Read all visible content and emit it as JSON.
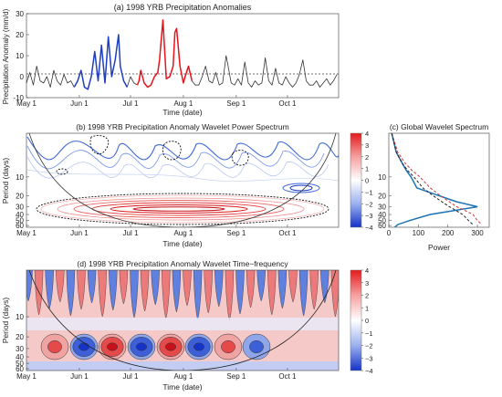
{
  "chart_data": [
    {
      "id": "a",
      "type": "line",
      "title": "(a) 1998 YRB Precipitation Anomalies",
      "xlabel": "Time (date)",
      "ylabel": "Precipitation Anomaly (mm/d)",
      "x_ticks": [
        "May 1",
        "Jun 1",
        "Jul 1",
        "Aug 1",
        "Sep 1",
        "Oct 1"
      ],
      "x_tick_days": [
        1,
        32,
        62,
        93,
        124,
        154
      ],
      "xlim": [
        1,
        184
      ],
      "ylim": [
        -10,
        30
      ],
      "y_ticks": [
        -10,
        0,
        10,
        20,
        30
      ],
      "zero_line": "dotted",
      "segments": [
        {
          "color": "#333333",
          "points": [
            [
              1,
              -3
            ],
            [
              3,
              2
            ],
            [
              5,
              -4
            ],
            [
              7,
              5
            ],
            [
              9,
              -2
            ],
            [
              11,
              -3
            ],
            [
              13,
              0
            ],
            [
              15,
              -5
            ],
            [
              17,
              3
            ],
            [
              19,
              -2
            ],
            [
              21,
              -4
            ],
            [
              23,
              1
            ],
            [
              25,
              -3
            ],
            [
              27,
              -2
            ],
            [
              29,
              -5
            ]
          ]
        },
        {
          "color": "#1f3fbf",
          "points": [
            [
              29,
              -5
            ],
            [
              31,
              -2
            ],
            [
              33,
              3
            ],
            [
              35,
              -5
            ],
            [
              37,
              -6
            ],
            [
              39,
              0
            ],
            [
              41,
              12
            ],
            [
              43,
              -2
            ],
            [
              45,
              15
            ],
            [
              47,
              -3
            ],
            [
              49,
              19
            ],
            [
              51,
              0
            ],
            [
              53,
              8
            ],
            [
              55,
              20
            ],
            [
              56,
              5
            ],
            [
              58,
              -2
            ],
            [
              60,
              -5
            ]
          ]
        },
        {
          "color": "#333333",
          "points": [
            [
              60,
              -5
            ],
            [
              62,
              0
            ],
            [
              64,
              -3
            ],
            [
              66,
              -4
            ]
          ]
        },
        {
          "color": "#e8121b",
          "points": [
            [
              66,
              -4
            ],
            [
              67,
              -2
            ],
            [
              68,
              3
            ],
            [
              70,
              -3
            ],
            [
              72,
              -5
            ],
            [
              74,
              -4
            ],
            [
              76,
              0
            ],
            [
              78,
              2
            ],
            [
              79,
              8
            ],
            [
              81,
              27
            ],
            [
              83,
              -1
            ],
            [
              85,
              0
            ],
            [
              87,
              5
            ],
            [
              88,
              21
            ],
            [
              89,
              23
            ],
            [
              91,
              5
            ],
            [
              93,
              -3
            ],
            [
              94,
              0
            ],
            [
              96,
              5
            ],
            [
              98,
              -2
            ]
          ]
        },
        {
          "color": "#333333",
          "points": [
            [
              98,
              -2
            ],
            [
              100,
              -4
            ],
            [
              102,
              -4
            ],
            [
              104,
              0
            ],
            [
              106,
              5
            ],
            [
              108,
              -2
            ],
            [
              110,
              -3
            ],
            [
              112,
              2
            ],
            [
              114,
              -4
            ],
            [
              116,
              -3
            ],
            [
              118,
              10
            ],
            [
              119,
              6
            ],
            [
              121,
              -3
            ],
            [
              123,
              -4
            ],
            [
              125,
              -1
            ],
            [
              127,
              -4
            ],
            [
              129,
              7
            ],
            [
              131,
              -3
            ],
            [
              133,
              -5
            ],
            [
              135,
              -2
            ],
            [
              137,
              -4
            ],
            [
              139,
              -3
            ],
            [
              141,
              9
            ],
            [
              143,
              -2
            ],
            [
              145,
              -4
            ],
            [
              147,
              4
            ],
            [
              149,
              -3
            ],
            [
              151,
              -4
            ],
            [
              153,
              0
            ],
            [
              155,
              -3
            ],
            [
              157,
              -5
            ],
            [
              159,
              -3
            ],
            [
              161,
              1
            ],
            [
              163,
              8
            ],
            [
              165,
              -2
            ],
            [
              167,
              -4
            ],
            [
              169,
              -4
            ],
            [
              171,
              -2
            ],
            [
              173,
              -5
            ],
            [
              175,
              -3
            ],
            [
              177,
              -1
            ],
            [
              179,
              -4
            ],
            [
              181,
              -2
            ],
            [
              183,
              1
            ]
          ]
        }
      ]
    },
    {
      "id": "b",
      "type": "heatmap",
      "title": "(b) 1998 YRB Precipitation Anomaly Wavelet Power Spectrum",
      "xlabel": "Time (date)",
      "ylabel": "Period (days)",
      "x_ticks": [
        "May 1",
        "Jun 1",
        "Jul 1",
        "Aug 1",
        "Sep 1",
        "Oct 1"
      ],
      "y_ticks": [
        "10",
        "20",
        "30",
        "40",
        "50",
        "60"
      ],
      "y_tick_values": [
        10,
        20,
        30,
        40,
        50,
        60
      ],
      "colorbar_ticks": [
        "4",
        "3",
        "2",
        "1",
        "0",
        "−1",
        "−2",
        "−3",
        "−4"
      ],
      "colorbar_values": [
        4,
        3,
        2,
        1,
        0,
        -1,
        -2,
        -3,
        -4
      ],
      "colorbar_range": [
        -4,
        4
      ],
      "style": "contour lines",
      "cone_of_influence": true
    },
    {
      "id": "c",
      "type": "line",
      "title": "(c) Global Wavelet Spectrum",
      "xlabel": "Power",
      "x_ticks": [
        0,
        100,
        200,
        300
      ],
      "xlim": [
        0,
        340
      ],
      "y_ticks": [
        "10",
        "20",
        "30",
        "40",
        "50",
        "60"
      ],
      "y_tick_values": [
        10,
        20,
        30,
        40,
        50,
        60
      ],
      "series": [
        {
          "color": "#1a73b5",
          "style": "solid",
          "points": [
            [
              10,
              2
            ],
            [
              25,
              4
            ],
            [
              45,
              6
            ],
            [
              60,
              8
            ],
            [
              75,
              10
            ],
            [
              95,
              15
            ],
            [
              170,
              20
            ],
            [
              230,
              25
            ],
            [
              300,
              30
            ],
            [
              230,
              34
            ],
            [
              140,
              40
            ],
            [
              70,
              50
            ],
            [
              30,
              58
            ],
            [
              20,
              64
            ]
          ]
        },
        {
          "color": "#d1373b",
          "style": "dashed",
          "points": [
            [
              10,
              2
            ],
            [
              30,
              4
            ],
            [
              55,
              6
            ],
            [
              80,
              8
            ],
            [
              105,
              10
            ],
            [
              140,
              15
            ],
            [
              175,
              20
            ],
            [
              205,
              25
            ],
            [
              230,
              30
            ],
            [
              255,
              34
            ],
            [
              285,
              40
            ],
            [
              300,
              50
            ],
            [
              315,
              58
            ]
          ]
        },
        {
          "color": "#222222",
          "style": "dashed",
          "points": [
            [
              10,
              2
            ],
            [
              25,
              4
            ],
            [
              45,
              6
            ],
            [
              65,
              8
            ],
            [
              85,
              10
            ],
            [
              115,
              15
            ],
            [
              150,
              20
            ],
            [
              180,
              25
            ],
            [
              205,
              30
            ],
            [
              225,
              34
            ],
            [
              250,
              40
            ],
            [
              270,
              50
            ],
            [
              285,
              58
            ]
          ]
        }
      ]
    },
    {
      "id": "d",
      "type": "heatmap",
      "title": "(d) 1998 YRB Precipitation Anomaly Wavelet Time−frequency",
      "xlabel": "Time (date)",
      "ylabel": "Period (days)",
      "x_ticks": [
        "May 1",
        "Jun 1",
        "Jul 1",
        "Aug 1",
        "Sep 1",
        "Oct 1"
      ],
      "y_ticks": [
        "10",
        "20",
        "30",
        "40",
        "50",
        "60"
      ],
      "y_tick_values": [
        10,
        20,
        30,
        40,
        50,
        60
      ],
      "colorbar_ticks": [
        "4",
        "3",
        "2",
        "1",
        "0",
        "−1",
        "−2",
        "−3",
        "−4"
      ],
      "colorbar_values": [
        4,
        3,
        2,
        1,
        0,
        -1,
        -2,
        -3,
        -4
      ],
      "colorbar_range": [
        -4,
        4
      ],
      "style": "filled contours",
      "cone_of_influence": true
    }
  ],
  "colors": {
    "negative": "#1f3fbf",
    "positive": "#e8121b",
    "neutral": "#333333"
  }
}
